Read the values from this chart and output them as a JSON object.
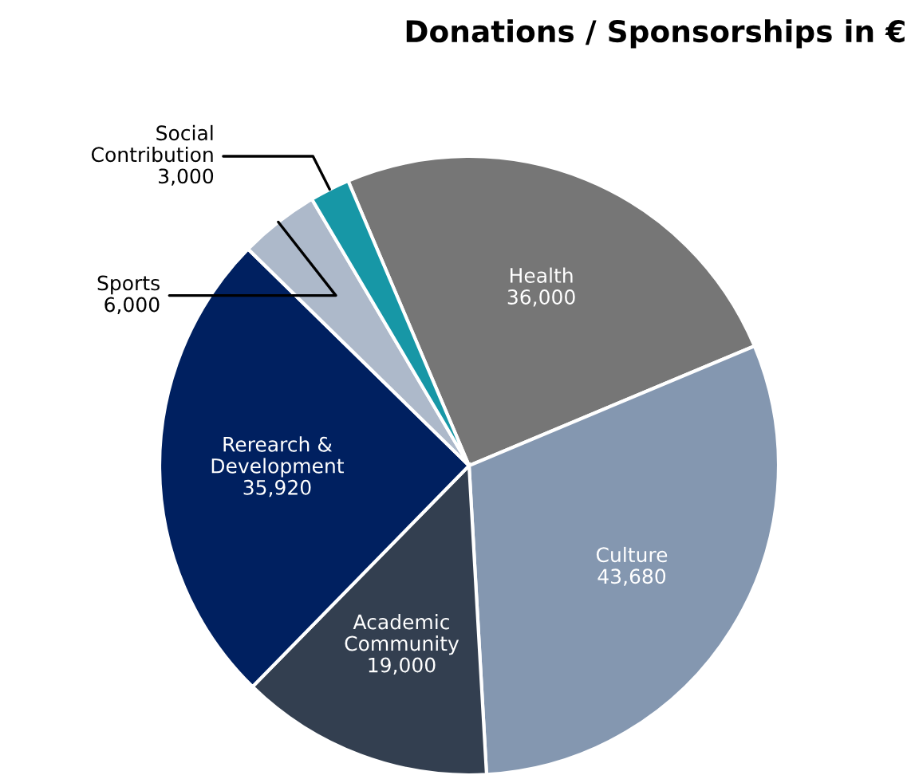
{
  "chart_data": {
    "type": "pie",
    "title": "Donations / Sponsorships in €",
    "categories": [
      "Health",
      "Culture",
      "Academic\nCommunity",
      "Rerearch &\nDevelopment",
      "Sports",
      "Social\nContribution"
    ],
    "values": [
      36000,
      43680,
      19000,
      35920,
      6000,
      3000
    ],
    "colors": [
      "#767676",
      "#8497b0",
      "#333f50",
      "#002060",
      "#adb9ca",
      "#1797a6"
    ],
    "value_labels": [
      "36,000",
      "43,680",
      "19,000",
      "35,920",
      "6,000",
      "3,000"
    ],
    "legend": false
  }
}
